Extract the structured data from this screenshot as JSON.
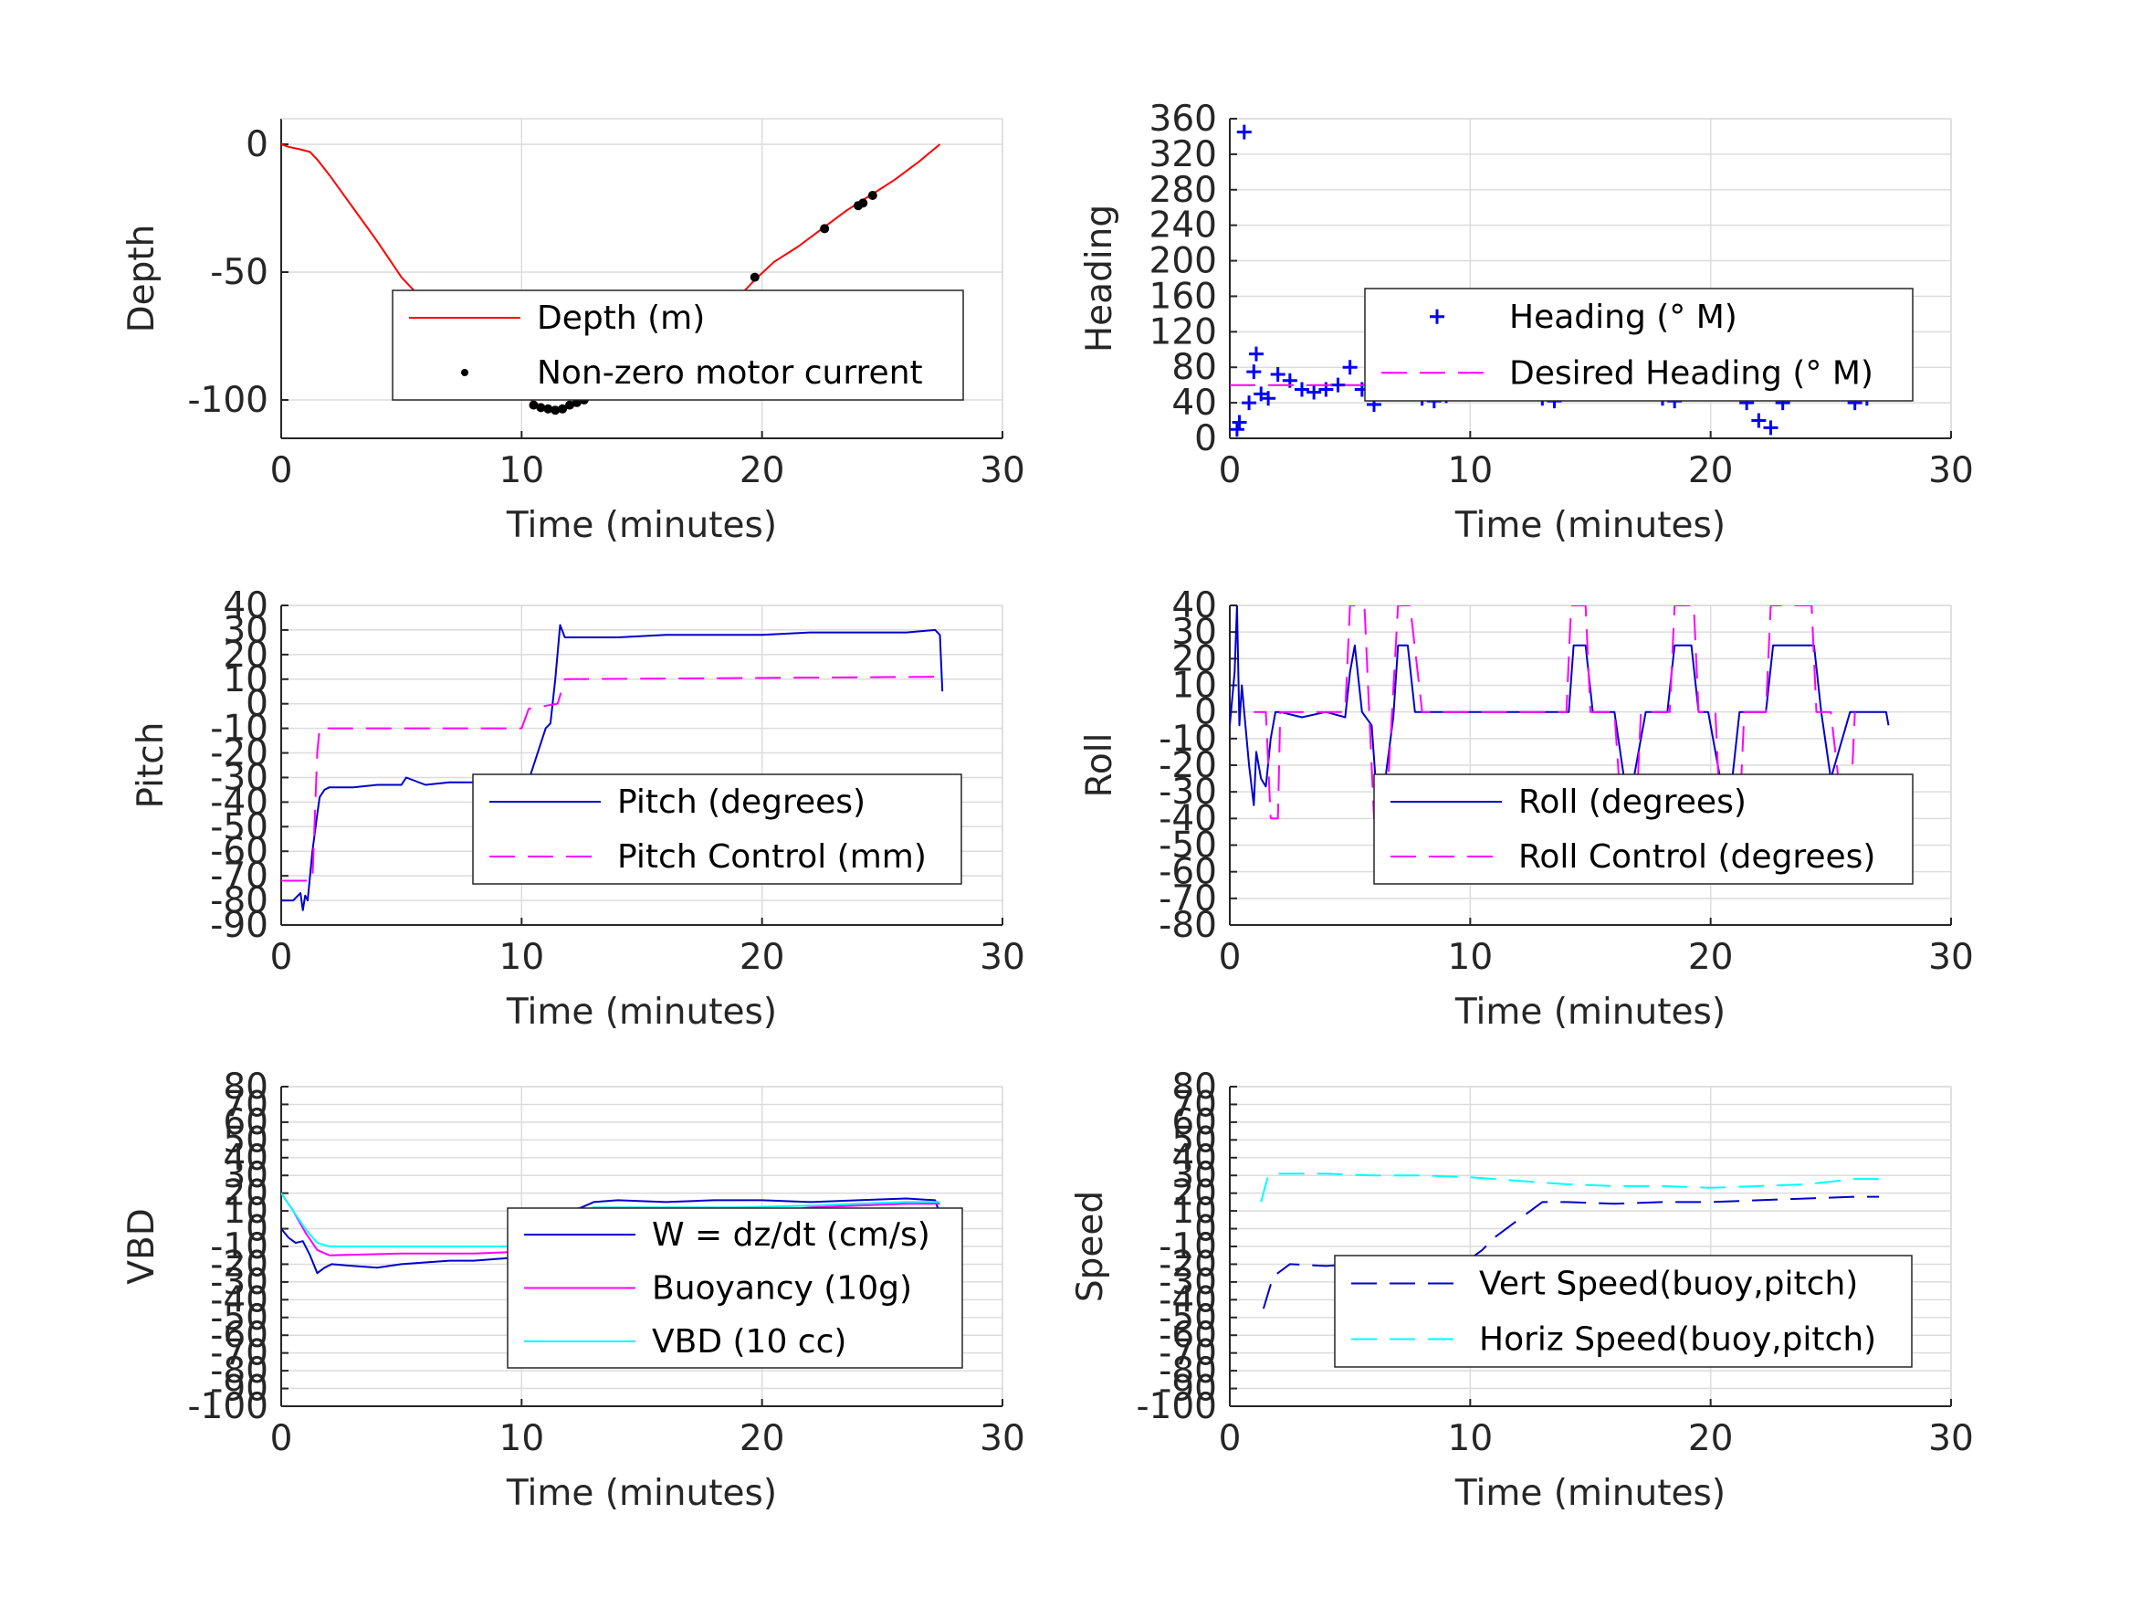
{
  "colors": {
    "depth": "#ff0000",
    "motor_points": "#000000",
    "heading": "#0000ff",
    "desired": "#ff00ff",
    "pitch": "#0000cc",
    "pitch_control": "#ff00ff",
    "roll": "#0000cc",
    "roll_control": "#ff00ff",
    "w": "#0000cc",
    "buoyancy": "#ff00ff",
    "vbd": "#00ffff",
    "vert_speed": "#0000cc",
    "horiz_speed": "#00ffff",
    "grid": "#dcdcdc",
    "axis": "#262626"
  },
  "chart_data": [
    {
      "id": "depth",
      "type": "line",
      "xlabel": "Time (minutes)",
      "ylabel": "Depth",
      "xlim": [
        0,
        30
      ],
      "ylim": [
        -115,
        10
      ],
      "xticks": [
        0,
        10,
        20,
        30
      ],
      "yticks": [
        -100,
        -50,
        0
      ],
      "grid": true,
      "legend_position": "center-right",
      "series": [
        {
          "name": "Depth (m)",
          "style": "line",
          "color": "#ff0000",
          "x": [
            0,
            0.3,
            0.8,
            1.2,
            1.5,
            2.0,
            3.0,
            4.0,
            5.0,
            6.0,
            7.0,
            8.0,
            9.0,
            10.0,
            10.5,
            11.0,
            11.5,
            12.0,
            12.5,
            13.0,
            14.0,
            15.0,
            16.0,
            17.0,
            18.0,
            19.0,
            19.7,
            20.5,
            21.5,
            22.5,
            23.5,
            24.0,
            24.5,
            25.5,
            26.5,
            27.4
          ],
          "y": [
            0,
            -1,
            -2,
            -3,
            -6,
            -12,
            -25,
            -38,
            -52,
            -62,
            -71,
            -80,
            -88,
            -96,
            -101,
            -103,
            -104,
            -103,
            -101,
            -99,
            -95,
            -87,
            -81,
            -75,
            -67,
            -60,
            -53,
            -46,
            -40,
            -33,
            -26,
            -23,
            -20,
            -14,
            -7,
            0
          ]
        },
        {
          "name": "Non-zero motor current",
          "style": "points",
          "color": "#000000",
          "x": [
            10.5,
            10.8,
            11.1,
            11.4,
            11.7,
            12.0,
            12.3,
            12.6,
            19.7,
            22.6,
            24.0,
            24.2,
            24.6
          ],
          "y": [
            -102,
            -103,
            -103.5,
            -104,
            -103.5,
            -102,
            -101,
            -100,
            -52,
            -33,
            -24,
            -23,
            -20
          ]
        }
      ]
    },
    {
      "id": "heading",
      "type": "scatter",
      "xlabel": "Time (minutes)",
      "ylabel": "Heading",
      "xlim": [
        0,
        30
      ],
      "ylim": [
        0,
        360
      ],
      "xticks": [
        0,
        10,
        20,
        30
      ],
      "yticks": [
        0,
        40,
        80,
        120,
        160,
        200,
        240,
        280,
        320,
        360
      ],
      "grid": true,
      "legend_position": "center-right",
      "series": [
        {
          "name": "Heading (° M)",
          "style": "plus",
          "color": "#0000ff",
          "x": [
            0.3,
            0.4,
            0.6,
            0.8,
            1.0,
            1.1,
            1.3,
            1.6,
            2.0,
            2.5,
            3.0,
            3.5,
            4.0,
            4.5,
            5.0,
            5.5,
            6.0,
            6.5,
            7.0,
            7.5,
            8.0,
            8.5,
            9.0,
            9.5,
            10.0,
            10.5,
            11.0,
            11.5,
            12.0,
            12.5,
            13.0,
            13.5,
            14.0,
            14.5,
            15.0,
            15.5,
            16.0,
            16.5,
            17.0,
            17.5,
            18.0,
            18.5,
            19.0,
            19.5,
            20.0,
            20.5,
            21.0,
            21.5,
            22.0,
            22.5,
            23.0,
            23.5,
            24.0,
            24.5,
            25.0,
            25.5,
            26.0,
            26.5,
            27.0,
            27.5
          ],
          "y": [
            10,
            18,
            345,
            40,
            75,
            95,
            50,
            45,
            72,
            65,
            55,
            52,
            55,
            60,
            80,
            55,
            38,
            60,
            85,
            70,
            45,
            42,
            48,
            50,
            52,
            50,
            62,
            75,
            70,
            55,
            45,
            42,
            55,
            72,
            82,
            85,
            80,
            65,
            55,
            50,
            45,
            42,
            70,
            90,
            80,
            60,
            60,
            40,
            20,
            12,
            40,
            70,
            90,
            100,
            80,
            55,
            40,
            45,
            55,
            62
          ]
        },
        {
          "name": "Desired Heading (° M)",
          "style": "dashed",
          "color": "#ff00ff",
          "x": [
            0,
            27.5
          ],
          "y": [
            60,
            60
          ]
        }
      ]
    },
    {
      "id": "pitch",
      "type": "line",
      "xlabel": "Time (minutes)",
      "ylabel": "Pitch",
      "xlim": [
        0,
        30
      ],
      "ylim": [
        -90,
        40
      ],
      "xticks": [
        0,
        10,
        20,
        30
      ],
      "yticks": [
        -90,
        -80,
        -70,
        -60,
        -50,
        -40,
        -30,
        -20,
        -10,
        0,
        10,
        20,
        30,
        40
      ],
      "grid": true,
      "legend_position": "lower-right",
      "series": [
        {
          "name": "Pitch (degrees)",
          "style": "line",
          "color": "#0000cc",
          "x": [
            0,
            0.5,
            0.8,
            0.9,
            1.0,
            1.1,
            1.3,
            1.5,
            1.6,
            1.8,
            2.0,
            3,
            4,
            5,
            5.2,
            6,
            7,
            8,
            9,
            10,
            10.3,
            10.5,
            11,
            11.2,
            11.4,
            11.6,
            11.8,
            12,
            14,
            16,
            18,
            20,
            22,
            24,
            26,
            27.2,
            27.4,
            27.5
          ],
          "y": [
            -80,
            -80,
            -77,
            -84,
            -78,
            -80,
            -60,
            -45,
            -38,
            -35,
            -34,
            -34,
            -33,
            -33,
            -30,
            -33,
            -32,
            -32,
            -33,
            -32,
            -31,
            -25,
            -10,
            -8,
            10,
            32,
            27,
            27,
            27,
            28,
            28,
            28,
            29,
            29,
            29,
            30,
            28,
            5
          ]
        },
        {
          "name": "Pitch Control (mm)",
          "style": "dashed",
          "color": "#ff00ff",
          "x": [
            0,
            1.3,
            1.5,
            1.6,
            2.0,
            10.0,
            10.3,
            11.5,
            11.8,
            27.5
          ],
          "y": [
            -72,
            -72,
            -20,
            -10,
            -10,
            -10,
            -2,
            0,
            10,
            11
          ]
        }
      ]
    },
    {
      "id": "roll",
      "type": "line",
      "xlabel": "Time (minutes)",
      "ylabel": "Roll",
      "xlim": [
        0,
        30
      ],
      "ylim": [
        -80,
        40
      ],
      "xticks": [
        0,
        10,
        20,
        30
      ],
      "yticks": [
        -80,
        -70,
        -60,
        -50,
        -40,
        -30,
        -20,
        -10,
        0,
        10,
        20,
        30,
        40
      ],
      "grid": true,
      "legend_position": "lower-right",
      "series": [
        {
          "name": "Roll (degrees)",
          "style": "line",
          "color": "#0000cc",
          "x": [
            0,
            0.2,
            0.3,
            0.4,
            0.5,
            0.6,
            0.8,
            1.0,
            1.1,
            1.3,
            1.5,
            1.7,
            1.9,
            2.1,
            3,
            4,
            4.8,
            5.0,
            5.2,
            5.5,
            5.9,
            6.1,
            6.4,
            6.8,
            7.0,
            7.4,
            7.7,
            8,
            10,
            12,
            13,
            14.1,
            14.3,
            14.8,
            15.1,
            15.6,
            16.0,
            16.4,
            16.8,
            17.3,
            18.2,
            18.5,
            19.2,
            19.5,
            19.9,
            20.4,
            20.9,
            21.2,
            21.5,
            22.3,
            22.6,
            23.1,
            24.3,
            24.6,
            25.0,
            25.8,
            26.5,
            27.3,
            27.4
          ],
          "y": [
            -5,
            15,
            40,
            -5,
            10,
            0,
            -20,
            -35,
            -15,
            -25,
            -28,
            -10,
            0,
            0,
            -2,
            0,
            -2,
            15,
            25,
            0,
            -5,
            -30,
            -30,
            -2,
            25,
            25,
            0,
            0,
            0,
            0,
            0,
            0,
            25,
            25,
            0,
            0,
            0,
            -25,
            -25,
            0,
            0,
            25,
            25,
            0,
            0,
            -25,
            -25,
            0,
            0,
            0,
            25,
            25,
            25,
            0,
            -25,
            0,
            0,
            0,
            -5
          ]
        },
        {
          "name": "Roll Control (degrees)",
          "style": "dashed",
          "color": "#ff00ff",
          "x": [
            1.0,
            1.5,
            1.7,
            2.0,
            2.1,
            4.8,
            5.0,
            5.6,
            5.8,
            6.0,
            6.5,
            7.0,
            7.5,
            8,
            14,
            14.2,
            14.8,
            15.0,
            16.0,
            16.3,
            16.9,
            17.1,
            18.3,
            18.5,
            19.3,
            19.5,
            20.2,
            20.4,
            21.2,
            21.4,
            22.3,
            22.5,
            24.2,
            24.4,
            25.0,
            25.5,
            25.8,
            26
          ],
          "y": [
            0,
            0,
            -40,
            -40,
            0,
            0,
            40,
            40,
            0,
            -40,
            -40,
            40,
            40,
            0,
            0,
            40,
            40,
            0,
            0,
            -40,
            -40,
            0,
            0,
            40,
            40,
            0,
            0,
            -40,
            -40,
            0,
            0,
            40,
            40,
            0,
            0,
            -40,
            -40,
            0
          ]
        }
      ]
    },
    {
      "id": "vbd",
      "type": "line",
      "xlabel": "Time (minutes)",
      "ylabel": "VBD",
      "xlim": [
        0,
        30
      ],
      "ylim": [
        -100,
        80
      ],
      "xticks": [
        0,
        10,
        20,
        30
      ],
      "yticks": [
        -100,
        -90,
        -80,
        -70,
        -60,
        -50,
        -40,
        -30,
        -20,
        -10,
        0,
        10,
        20,
        30,
        40,
        50,
        60,
        70,
        80
      ],
      "grid": true,
      "legend_position": "lower-right",
      "series": [
        {
          "name": "W = dz/dt (cm/s)",
          "style": "line",
          "color": "#0000cc",
          "x": [
            0,
            0.3,
            0.6,
            0.9,
            1.2,
            1.5,
            1.8,
            2.1,
            3,
            4,
            5,
            6,
            7,
            8,
            9,
            10,
            10.5,
            11,
            11.5,
            12,
            12.5,
            13,
            14,
            16,
            18,
            20,
            22,
            24,
            26,
            27.2,
            27.4
          ],
          "y": [
            0,
            -5,
            -8,
            -7,
            -15,
            -25,
            -22,
            -20,
            -21,
            -22,
            -20,
            -19,
            -18,
            -18,
            -17,
            -16,
            -12,
            -5,
            5,
            10,
            12,
            15,
            16,
            15,
            16,
            16,
            15,
            16,
            17,
            16,
            8
          ]
        },
        {
          "name": "Buoyancy (10g)",
          "style": "line",
          "color": "#ff00ff",
          "x": [
            0,
            0.5,
            1.0,
            1.5,
            2.0,
            5,
            8,
            10,
            10.5,
            11,
            12,
            13,
            16,
            19,
            20,
            22,
            24,
            26,
            27.4
          ],
          "y": [
            20,
            10,
            -2,
            -12,
            -15,
            -14,
            -14,
            -13,
            -10,
            -2,
            8,
            10,
            10,
            10,
            9,
            12,
            13,
            14,
            14
          ]
        },
        {
          "name": "VBD (10 cc)",
          "style": "line",
          "color": "#00ffff",
          "x": [
            0,
            0.5,
            1.0,
            1.5,
            2.0,
            5,
            8,
            10,
            10.5,
            11,
            12,
            13,
            16,
            19,
            22,
            24,
            26,
            27.4
          ],
          "y": [
            20,
            10,
            0,
            -8,
            -10,
            -10,
            -10,
            -10,
            -7,
            0,
            8,
            12,
            12,
            12,
            13,
            14,
            15,
            15
          ]
        }
      ]
    },
    {
      "id": "speed",
      "type": "line",
      "xlabel": "Time (minutes)",
      "ylabel": "Speed",
      "xlim": [
        0,
        30
      ],
      "ylim": [
        -100,
        80
      ],
      "xticks": [
        0,
        10,
        20,
        30
      ],
      "yticks": [
        -100,
        -90,
        -80,
        -70,
        -60,
        -50,
        -40,
        -30,
        -20,
        -10,
        0,
        10,
        20,
        30,
        40,
        50,
        60,
        70,
        80
      ],
      "grid": true,
      "legend_position": "lower-right",
      "series": [
        {
          "name": "Vert Speed(buoy,pitch)",
          "style": "dashed",
          "color": "#0000cc",
          "x": [
            1.4,
            1.8,
            2.5,
            4,
            6,
            8,
            9.5,
            10,
            10.5,
            11,
            12,
            13,
            14,
            16,
            18,
            20,
            22,
            24,
            26,
            27
          ],
          "y": [
            -45,
            -27,
            -20,
            -21,
            -19,
            -18,
            -18,
            -17,
            -12,
            -5,
            5,
            15,
            15,
            14,
            15,
            15,
            16,
            17,
            18,
            18
          ]
        },
        {
          "name": "Horiz Speed(buoy,pitch)",
          "style": "dashed",
          "color": "#00ffff",
          "x": [
            1.3,
            1.6,
            2,
            4,
            6,
            8,
            10,
            12,
            14,
            16,
            18,
            20,
            22,
            24,
            26,
            27
          ],
          "y": [
            15,
            30,
            31,
            31,
            30,
            30,
            29,
            27,
            25,
            24,
            24,
            23,
            24,
            25,
            28,
            28
          ]
        }
      ]
    }
  ]
}
